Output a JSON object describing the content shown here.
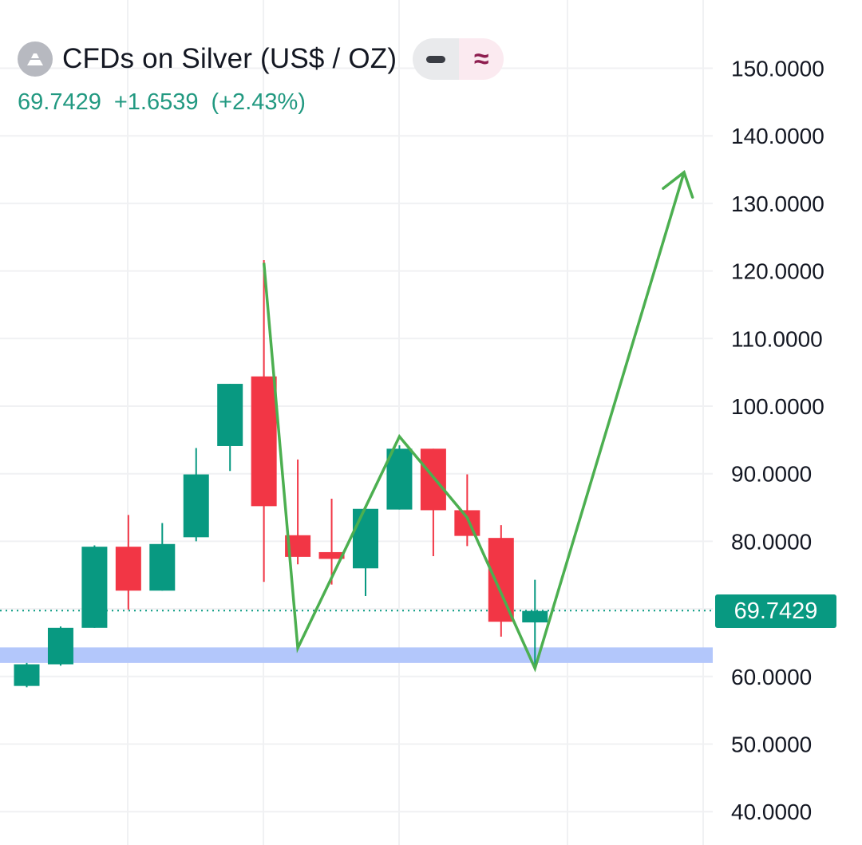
{
  "header": {
    "title": "CFDs on Silver (US$ / OZ)",
    "last": "69.7429",
    "change": "+1.6539",
    "change_pct": "(+2.43%)",
    "toggle_icon": "minus-icon",
    "indicator_icon": "approx-icon",
    "indicator_symbol": "≈"
  },
  "price_tag": "69.7429",
  "colors": {
    "up": "#089981",
    "down": "#f23645",
    "pattern_line": "#4caf50",
    "support_zone": "#b3c7fb",
    "grid": "#f0f1f3",
    "price_line": "#089981"
  },
  "chart_data": {
    "type": "candlestick",
    "title": "CFDs on Silver (US$ / OZ)",
    "ylim": [
      37,
      162
    ],
    "y_ticks": [
      {
        "value": 150,
        "label": "150.0000"
      },
      {
        "value": 140,
        "label": "140.0000"
      },
      {
        "value": 130,
        "label": "130.0000"
      },
      {
        "value": 120,
        "label": "120.0000"
      },
      {
        "value": 110,
        "label": "110.0000"
      },
      {
        "value": 100,
        "label": "100.0000"
      },
      {
        "value": 90,
        "label": "90.0000"
      },
      {
        "value": 80,
        "label": "80.0000"
      },
      {
        "value": 60,
        "label": "60.0000"
      },
      {
        "value": 50,
        "label": "50.0000"
      },
      {
        "value": 40,
        "label": "40.0000"
      }
    ],
    "candles": [
      {
        "i": 0,
        "open": 58.6,
        "high": 62.0,
        "low": 58.4,
        "close": 61.8
      },
      {
        "i": 1,
        "open": 61.8,
        "high": 67.4,
        "low": 61.6,
        "close": 67.2
      },
      {
        "i": 2,
        "open": 67.2,
        "high": 79.4,
        "low": 67.2,
        "close": 79.2
      },
      {
        "i": 3,
        "open": 79.2,
        "high": 83.9,
        "low": 69.9,
        "close": 72.7
      },
      {
        "i": 4,
        "open": 72.7,
        "high": 82.7,
        "low": 72.7,
        "close": 79.6
      },
      {
        "i": 5,
        "open": 80.6,
        "high": 93.8,
        "low": 80.0,
        "close": 89.9
      },
      {
        "i": 6,
        "open": 94.1,
        "high": 103.3,
        "low": 90.4,
        "close": 103.3
      },
      {
        "i": 7,
        "open": 104.4,
        "high": 121.6,
        "low": 74.0,
        "close": 85.2
      },
      {
        "i": 8,
        "open": 80.9,
        "high": 92.1,
        "low": 76.6,
        "close": 77.7
      },
      {
        "i": 9,
        "open": 78.4,
        "high": 86.3,
        "low": 73.6,
        "close": 77.4
      },
      {
        "i": 10,
        "open": 76.0,
        "high": 84.8,
        "low": 71.9,
        "close": 84.8
      },
      {
        "i": 11,
        "open": 84.7,
        "high": 94.2,
        "low": 84.7,
        "close": 93.7
      },
      {
        "i": 12,
        "open": 93.7,
        "high": 93.7,
        "low": 77.8,
        "close": 84.6
      },
      {
        "i": 13,
        "open": 84.6,
        "high": 89.9,
        "low": 79.3,
        "close": 80.8
      },
      {
        "i": 14,
        "open": 80.5,
        "high": 82.4,
        "low": 65.9,
        "close": 68.1
      },
      {
        "i": 15,
        "open": 68.0,
        "high": 74.3,
        "low": 61.3,
        "close": 69.7
      }
    ],
    "current_price": 69.7429,
    "support_zone": [
      62.0,
      64.3
    ],
    "pattern_line": [
      {
        "i": 7,
        "price": 121.2
      },
      {
        "i": 8,
        "price": 64.2
      },
      {
        "i": 11,
        "price": 95.5
      },
      {
        "i": 13,
        "price": 83.5
      },
      {
        "i": 15,
        "price": 61.2
      },
      {
        "i": 19.4,
        "price": 134.6
      }
    ]
  }
}
